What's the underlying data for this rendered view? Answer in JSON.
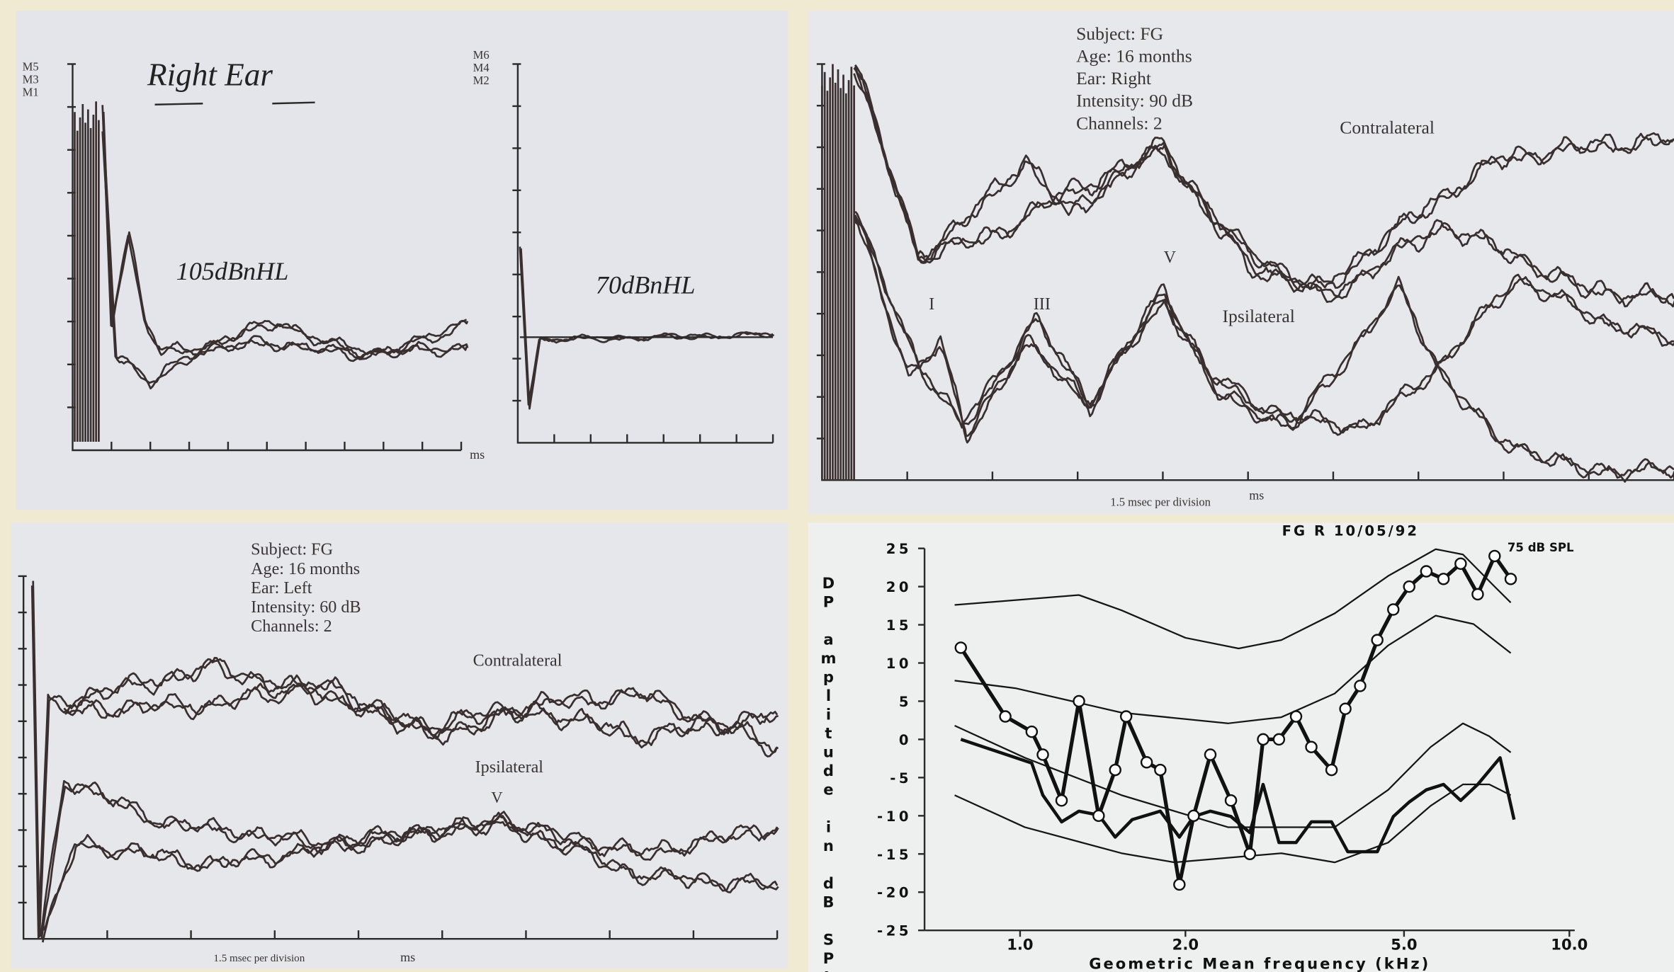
{
  "panels": [
    {
      "title": "Right Ear",
      "y_labels_1": [
        "M5",
        "M3",
        "M1"
      ],
      "y_labels_2": [
        "M6",
        "M4",
        "M2"
      ],
      "traces": [
        "105dBnHL",
        "70dBnHL"
      ],
      "x_unit": "ms"
    },
    {
      "info": [
        "Subject: FG",
        "Age: 16 months",
        "Ear: Right",
        "Intensity: 90 dB",
        "Channels: 2"
      ],
      "contralateral": "Contralateral",
      "ipsilateral": "Ipsilateral",
      "waves": [
        "I",
        "III",
        "V"
      ],
      "scale": "1.5 msec per division",
      "x_unit": "ms"
    },
    {
      "info": [
        "Subject: FG",
        "Age: 16 months",
        "Ear: Left",
        "Intensity: 60 dB",
        "Channels: 2"
      ],
      "contralateral": "Contralateral",
      "ipsilateral": "Ipsilateral",
      "waves": [
        "V"
      ],
      "scale": "1.5 msec per division",
      "x_unit": "ms"
    }
  ],
  "chart_data": {
    "type": "line",
    "title": "FG R 10/05/92",
    "annotation": "75 dB SPL",
    "y_label": "DP amplitude in dB SPL",
    "x_label": "Geometric Mean frequency (kHz)",
    "log_x": true,
    "xlim": [
      0.67,
      10
    ],
    "xticks": [
      {
        "value": 1,
        "label": "1.0"
      },
      {
        "value": 2,
        "label": "2.0"
      },
      {
        "value": 5,
        "label": "5.0"
      },
      {
        "value": 10,
        "label": "10.0"
      }
    ],
    "ylim": [
      -25,
      25
    ],
    "yticks": [
      -25,
      -20,
      -15,
      -10,
      -5,
      0,
      5,
      10,
      15,
      20,
      25
    ],
    "series": [
      {
        "color": "#151515",
        "line_width": 1.5,
        "markers": false,
        "x": [
          0.76,
          1.28,
          1.53,
          2.0,
          2.5,
          2.99,
          3.74,
          4.68,
          5.71,
          6.4,
          7.31,
          7.82
        ],
        "values": [
          17.6,
          18.9,
          16.9,
          13.3,
          11.9,
          13.0,
          16.5,
          21.4,
          24.9,
          24.2,
          20.0,
          17.9
        ]
      },
      {
        "color": "#151515",
        "line_width": 1.5,
        "markers": false,
        "x": [
          0.76,
          0.98,
          1.53,
          2.39,
          2.99,
          3.74,
          4.68,
          5.71,
          6.69,
          7.82
        ],
        "values": [
          7.7,
          6.7,
          3.5,
          2.1,
          2.9,
          6.0,
          12.3,
          16.2,
          15.1,
          11.3
        ]
      },
      {
        "color": "#151515",
        "line_width": 1.5,
        "markers": false,
        "x": [
          0.76,
          1.02,
          1.53,
          2.39,
          3.74,
          4.68,
          5.59,
          6.4,
          7.15,
          7.82
        ],
        "values": [
          1.8,
          -2.4,
          -7.3,
          -11.5,
          -11.5,
          -6.6,
          -1.0,
          2.1,
          0.4,
          -1.7
        ]
      },
      {
        "color": "#151515",
        "line_width": 1.5,
        "markers": false,
        "x": [
          0.76,
          1.02,
          1.53,
          1.91,
          2.99,
          3.74,
          4.68,
          5.59,
          6.4,
          7.15,
          7.82
        ],
        "values": [
          -7.3,
          -11.5,
          -14.9,
          -16.1,
          -14.9,
          -16.1,
          -13.5,
          -8.7,
          -5.9,
          -5.9,
          -7.3
        ]
      },
      {
        "color": "#111111",
        "line_width": 3,
        "markers": false,
        "x": [
          0.78,
          1.05,
          1.1,
          1.19,
          1.28,
          1.39,
          1.49,
          1.6,
          1.8,
          1.95,
          2.07,
          2.22,
          2.42,
          2.62,
          2.77,
          2.96,
          3.18,
          3.39,
          3.69,
          3.95,
          4.47,
          4.78,
          5.11,
          5.49,
          5.9,
          6.34,
          6.81,
          7.48,
          7.93
        ],
        "values": [
          0,
          -3.1,
          -7.3,
          -10.8,
          -9.4,
          -9.9,
          -12.8,
          -10.5,
          -9.4,
          -12.8,
          -10.1,
          -9.4,
          -10.1,
          -12.2,
          -5.9,
          -13.5,
          -13.5,
          -10.8,
          -10.8,
          -14.7,
          -14.7,
          -10.1,
          -8.2,
          -6.6,
          -5.9,
          -8.0,
          -5.9,
          -2.4,
          -10.5
        ]
      },
      {
        "color": "#111111",
        "line_width": 3.5,
        "markers": true,
        "x": [
          0.78,
          0.94,
          1.05,
          1.1,
          1.19,
          1.28,
          1.39,
          1.49,
          1.56,
          1.7,
          1.8,
          1.95,
          2.07,
          2.22,
          2.42,
          2.62,
          2.77,
          2.96,
          3.18,
          3.39,
          3.69,
          3.91,
          4.16,
          4.47,
          4.78,
          5.11,
          5.49,
          5.9,
          6.34,
          6.81,
          7.31,
          7.82
        ],
        "values": [
          12,
          3,
          1,
          -2,
          -8,
          5,
          -10,
          -4,
          3,
          -3,
          -4,
          -19,
          -10,
          -2,
          -8,
          -15,
          0,
          0,
          3,
          -1,
          -4,
          4,
          7,
          13,
          17,
          20,
          22,
          21,
          23,
          19,
          24,
          21
        ]
      }
    ]
  }
}
